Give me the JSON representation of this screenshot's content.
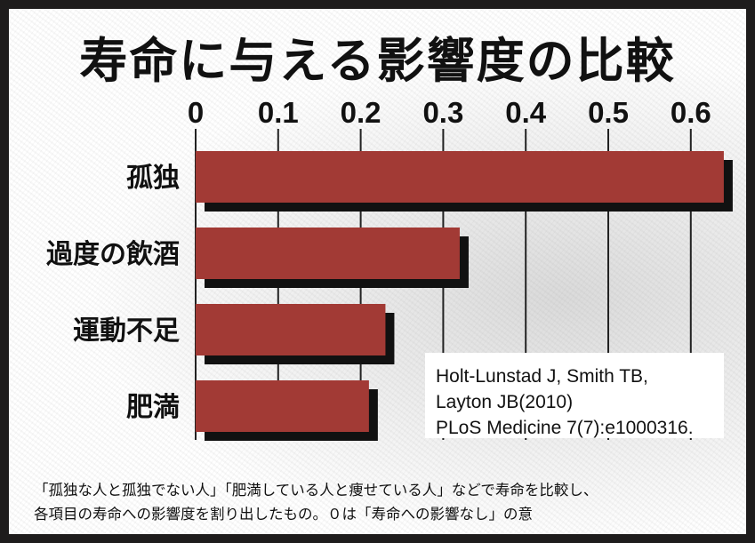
{
  "chart_data": {
    "type": "bar",
    "orientation": "horizontal",
    "title": "寿命に与える影響度の比較",
    "categories": [
      "孤独",
      "過度の飲酒",
      "運動不足",
      "肥満"
    ],
    "values": [
      0.64,
      0.32,
      0.23,
      0.21
    ],
    "xlim": [
      0,
      0.65
    ],
    "xticks": [
      "0",
      "0.1",
      "0.2",
      "0.3",
      "0.4",
      "0.5",
      "0.6"
    ],
    "tick_values": [
      0,
      0.1,
      0.2,
      0.3,
      0.4,
      0.5,
      0.6
    ],
    "grid": true,
    "xaxis_position": "top",
    "bar_color": "#a23a35",
    "shadow_color": "#111111"
  },
  "source": {
    "lines": [
      "Holt-Lunstad J, Smith TB,",
      "Layton JB(2010)",
      "PLoS Medicine 7(7):e1000316."
    ]
  },
  "note": {
    "lines": [
      "「孤独な人と孤独でない人」「肥満している人と痩せている人」などで寿命を比較し、",
      "各項目の寿命への影響度を割り出したもの。０は「寿命への影響なし」の意"
    ]
  }
}
